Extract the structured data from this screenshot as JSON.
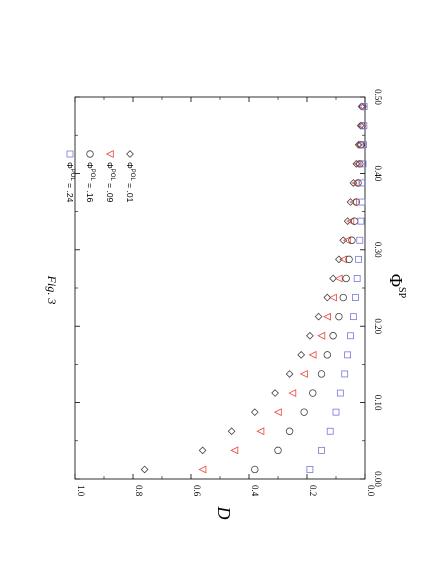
{
  "figure_label": "Fig. 3",
  "chart_data": {
    "type": "scatter",
    "xlabel": "Φ",
    "xlabel_sup": "SP",
    "ylabel": "D",
    "xlim": [
      0.0,
      0.5
    ],
    "ylim": [
      0.0,
      1.0
    ],
    "x_ticks": [
      "0.00",
      "0.10",
      "0.20",
      "0.30",
      "0.40",
      "0.50"
    ],
    "y_ticks": [
      "0.0",
      "0.2",
      "0.4",
      "0.6",
      "0.8",
      "1.0"
    ],
    "legend_position": "top-right",
    "series": [
      {
        "name": "= .01",
        "name_phi": "Φ",
        "name_sup": "POL",
        "marker": "diamond",
        "color": "#444444",
        "x": [
          0.0125,
          0.0375,
          0.0625,
          0.0875,
          0.1125,
          0.1375,
          0.1625,
          0.1875,
          0.2125,
          0.2375,
          0.2625,
          0.2875,
          0.3125,
          0.3375,
          0.3625,
          0.3875,
          0.4125,
          0.4375,
          0.4625,
          0.4875
        ],
        "y": [
          0.76,
          0.56,
          0.46,
          0.38,
          0.31,
          0.26,
          0.22,
          0.19,
          0.16,
          0.13,
          0.11,
          0.09,
          0.075,
          0.06,
          0.05,
          0.04,
          0.03,
          0.022,
          0.015,
          0.012
        ]
      },
      {
        "name": "= .09",
        "name_phi": "Φ",
        "name_sup": "POL",
        "marker": "triangle",
        "color": "#e8453c",
        "x": [
          0.0125,
          0.0375,
          0.0625,
          0.0875,
          0.1125,
          0.1375,
          0.1625,
          0.1875,
          0.2125,
          0.2375,
          0.2625,
          0.2875,
          0.3125,
          0.3375,
          0.3625,
          0.3875,
          0.4125,
          0.4375,
          0.4625,
          0.4875
        ],
        "y": [
          0.56,
          0.45,
          0.36,
          0.3,
          0.25,
          0.21,
          0.18,
          0.15,
          0.13,
          0.11,
          0.09,
          0.075,
          0.062,
          0.05,
          0.04,
          0.032,
          0.025,
          0.018,
          0.013,
          0.01
        ]
      },
      {
        "name": "= .16",
        "name_phi": "Φ",
        "name_sup": "POL",
        "marker": "circle",
        "color": "#444444",
        "x": [
          0.0125,
          0.0375,
          0.0625,
          0.0875,
          0.1125,
          0.1375,
          0.1625,
          0.1875,
          0.2125,
          0.2375,
          0.2625,
          0.2875,
          0.3125,
          0.3375,
          0.3625,
          0.3875,
          0.4125,
          0.4375,
          0.4625,
          0.4875
        ],
        "y": [
          0.38,
          0.3,
          0.26,
          0.21,
          0.18,
          0.15,
          0.13,
          0.11,
          0.09,
          0.075,
          0.065,
          0.055,
          0.045,
          0.036,
          0.03,
          0.024,
          0.018,
          0.014,
          0.01,
          0.008
        ]
      },
      {
        "name": "= .24",
        "name_phi": "Φ",
        "name_sup": "POL",
        "marker": "square",
        "color": "#7777dd",
        "x": [
          0.0125,
          0.0375,
          0.0625,
          0.0875,
          0.1125,
          0.1375,
          0.1625,
          0.1875,
          0.2125,
          0.2375,
          0.2625,
          0.2875,
          0.3125,
          0.3375,
          0.3625,
          0.3875,
          0.4125,
          0.4375,
          0.4625,
          0.4875
        ],
        "y": [
          0.19,
          0.15,
          0.12,
          0.1,
          0.085,
          0.07,
          0.06,
          0.05,
          0.04,
          0.033,
          0.027,
          0.022,
          0.018,
          0.014,
          0.011,
          0.009,
          0.007,
          0.005,
          0.004,
          0.003
        ]
      }
    ]
  }
}
